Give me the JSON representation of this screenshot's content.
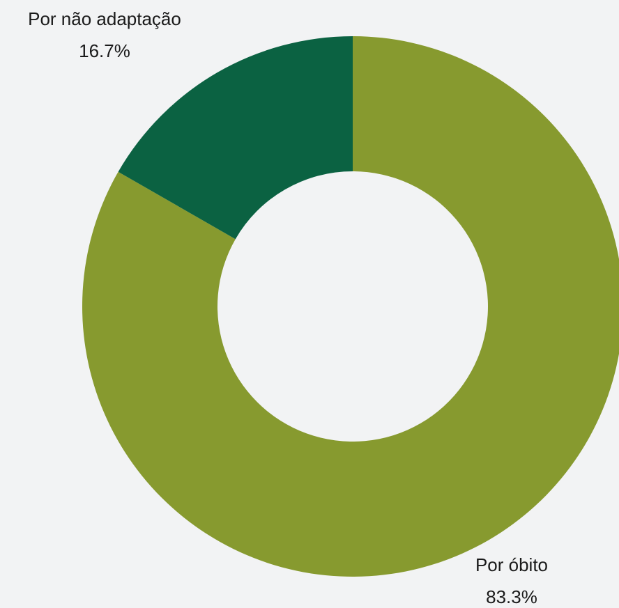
{
  "chart_data": {
    "type": "pie",
    "variant": "donut",
    "title": "",
    "slices": [
      {
        "label": "Por óbito",
        "value": 83.3,
        "value_label": "83.3%",
        "color": "#879a2f"
      },
      {
        "label": "Por não adaptação",
        "value": 16.7,
        "value_label": "16.7%",
        "color": "#0b6242"
      }
    ],
    "start_angle_deg": 0,
    "direction": "clockwise",
    "legend": "none"
  },
  "colors": {
    "background": "#f2f3f4",
    "label_text": "#1a1a1a"
  }
}
